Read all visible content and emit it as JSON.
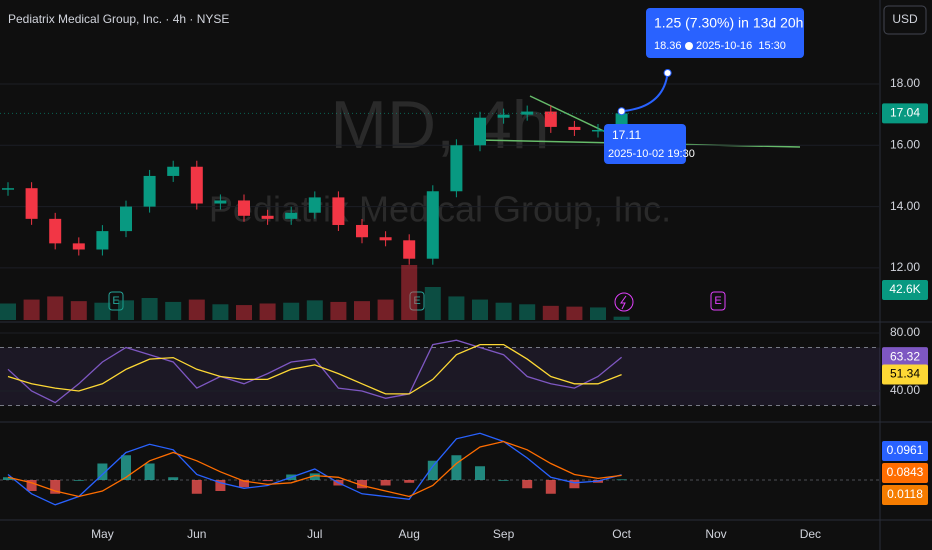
{
  "chart_data": [
    {
      "type": "candlestick",
      "title": "Pediatrix Medical Group, Inc. · 4h · NYSE",
      "watermark": "MD, 4h",
      "watermark_subtitle": "Pediatrix Medical Group, Inc.",
      "currency": "USD",
      "earnings_marker": "E",
      "categories": [
        null,
        null,
        null,
        null,
        "May",
        null,
        null,
        null,
        "Jun",
        null,
        null,
        null,
        null,
        "Jul",
        null,
        null,
        null,
        "Aug",
        null,
        null,
        null,
        "Sep",
        null,
        null,
        null,
        null,
        "Oct",
        null,
        null,
        null,
        "Nov",
        null,
        null,
        null,
        "Dec",
        null
      ],
      "values": [
        14.6,
        13.6,
        12.8,
        12.6,
        13.2,
        14.0,
        15.0,
        15.3,
        14.1,
        14.2,
        13.7,
        13.6,
        13.8,
        14.3,
        13.4,
        13.0,
        12.9,
        12.3,
        14.5,
        16.0,
        16.9,
        17.0,
        17.1,
        16.6,
        16.5,
        16.5,
        17.04,
        null,
        null,
        null,
        null,
        null,
        null,
        null,
        null,
        null
      ],
      "up_color": "#089981",
      "down_color": "#f23645",
      "ylim": [
        10.3,
        20.74
      ],
      "yticks": [
        {
          "value": 12,
          "label": "12.00"
        },
        {
          "value": 14,
          "label": "14.00"
        },
        {
          "value": 16,
          "label": "16.00"
        },
        {
          "value": 18,
          "label": "18.00"
        }
      ],
      "volume": {
        "values": [
          210,
          260,
          300,
          240,
          220,
          250,
          280,
          230,
          260,
          200,
          190,
          210,
          220,
          250,
          230,
          240,
          260,
          700,
          420,
          300,
          260,
          220,
          200,
          180,
          170,
          160,
          42.6,
          null,
          null,
          null,
          null,
          null,
          null,
          null,
          null,
          null
        ],
        "value_labels": [
          null,
          null,
          null,
          null,
          null,
          null,
          null,
          null,
          null,
          null,
          null,
          null,
          null,
          null,
          null,
          null,
          null,
          null,
          null,
          null,
          null,
          null,
          null,
          null,
          null,
          null,
          "42.6K",
          null,
          null,
          null,
          null,
          null,
          null,
          null,
          null,
          null
        ]
      },
      "measure": {
        "label": "1.25 (7.30%) in 13d 20h",
        "target_price": 18.36,
        "target_time": "2025-10-16  15:30",
        "start_price": 17.11,
        "start_time": "2025-10-02 19:30"
      }
    },
    {
      "type": "line",
      "ylim": [
        21.4,
        85.5
      ],
      "yticks": [
        {
          "value": 40,
          "label": "40.00"
        },
        {
          "value": 80,
          "label": "80.00"
        }
      ],
      "band": [
        30,
        70
      ],
      "series": [
        {
          "color": "#7e57c2",
          "values": [
            55,
            40,
            32,
            45,
            60,
            70,
            65,
            60,
            42,
            50,
            45,
            52,
            60,
            62,
            42,
            40,
            35,
            38,
            72,
            75,
            70,
            65,
            50,
            45,
            42,
            50,
            63.32,
            null,
            null,
            null,
            null,
            null,
            null,
            null,
            null,
            null
          ]
        },
        {
          "color": "#fdd835",
          "values": [
            50,
            45,
            42,
            40,
            45,
            55,
            62,
            63,
            55,
            50,
            48,
            48,
            55,
            58,
            52,
            45,
            38,
            38,
            48,
            65,
            72,
            72,
            62,
            50,
            45,
            45,
            51.34,
            null,
            null,
            null,
            null,
            null,
            null,
            null,
            null,
            null
          ]
        }
      ]
    },
    {
      "type": "macd",
      "series": [
        {
          "color": "#2962ff",
          "values": [
            0.1,
            -0.25,
            -0.45,
            -0.3,
            0.1,
            0.5,
            0.65,
            0.55,
            0.1,
            -0.05,
            -0.15,
            -0.1,
            0.05,
            0.2,
            -0.05,
            -0.25,
            -0.3,
            -0.35,
            0.25,
            0.75,
            0.85,
            0.7,
            0.4,
            0.05,
            -0.05,
            -0.02,
            0.0961,
            null,
            null,
            null,
            null,
            null,
            null,
            null,
            null,
            null
          ]
        },
        {
          "color": "#ff6d00",
          "values": [
            0.05,
            -0.05,
            -0.2,
            -0.3,
            -0.2,
            0.05,
            0.35,
            0.5,
            0.35,
            0.15,
            -0.02,
            -0.08,
            -0.05,
            0.08,
            0.05,
            -0.1,
            -0.2,
            -0.3,
            -0.1,
            0.3,
            0.6,
            0.7,
            0.55,
            0.3,
            0.1,
            0.03,
            0.0843,
            null,
            null,
            null,
            null,
            null,
            null,
            null,
            null,
            null
          ]
        }
      ],
      "histogram": {
        "up_color": "#26a69a",
        "down_color": "#ef5350",
        "values": [
          0.05,
          -0.2,
          -0.25,
          0,
          0.3,
          0.45,
          0.3,
          0.05,
          -0.25,
          -0.2,
          -0.13,
          -0.02,
          0.1,
          0.12,
          -0.1,
          -0.15,
          -0.1,
          -0.05,
          0.35,
          0.45,
          0.25,
          0,
          -0.15,
          -0.25,
          -0.15,
          -0.05,
          0.0118,
          null,
          null,
          null,
          null,
          null,
          null,
          null,
          null,
          null
        ]
      }
    }
  ]
}
